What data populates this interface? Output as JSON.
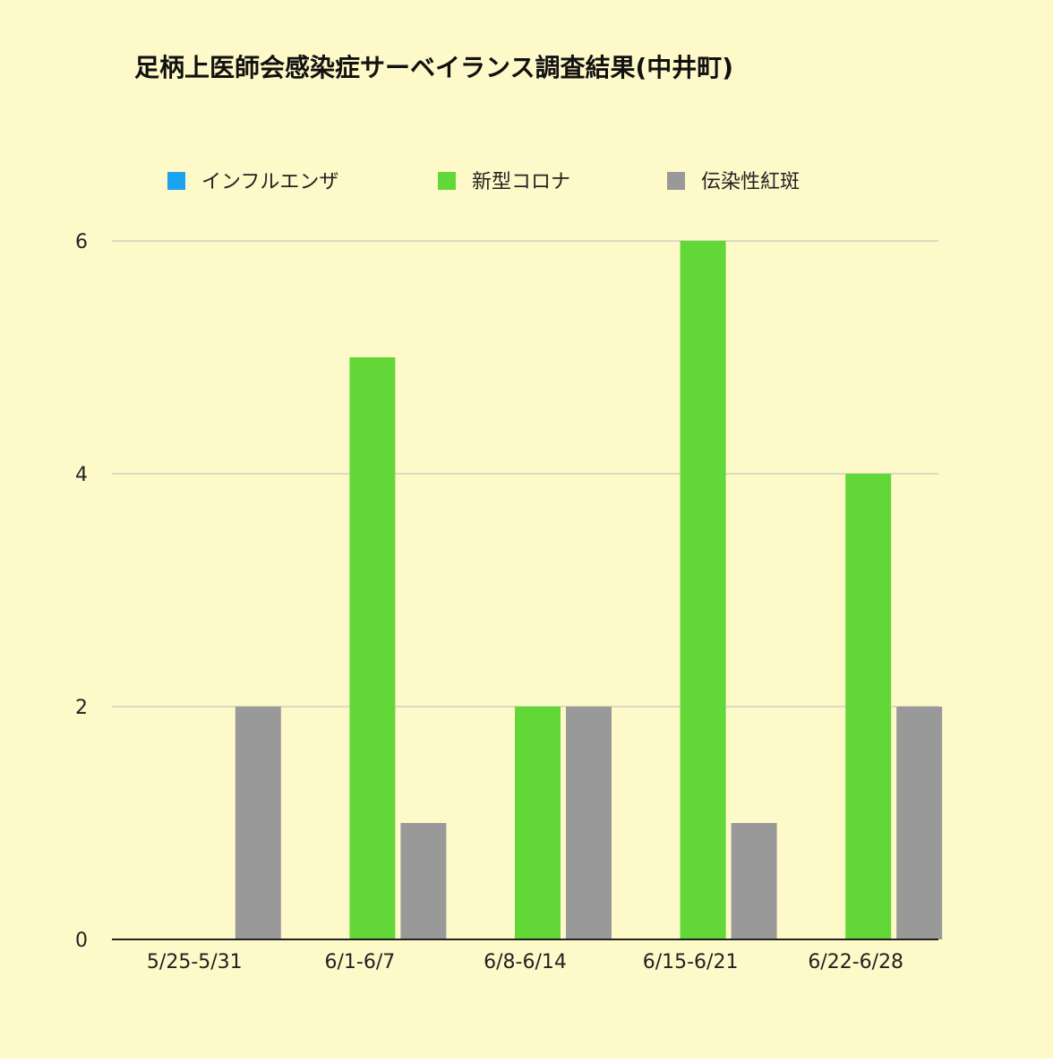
{
  "chart_data": {
    "type": "bar",
    "title": "足柄上医師会感染症サーベイランス調査結果(中井町)",
    "xlabel": "",
    "ylabel": "",
    "categories": [
      "5/25-5/31",
      "6/1-6/7",
      "6/8-6/14",
      "6/15-6/21",
      "6/22-6/28"
    ],
    "series": [
      {
        "name": "インフルエンザ",
        "color": "#1aa3f0",
        "values": [
          0,
          0,
          0,
          0,
          0
        ]
      },
      {
        "name": "新型コロナ",
        "color": "#62d838",
        "values": [
          0,
          5,
          2,
          6,
          4
        ]
      },
      {
        "name": "伝染性紅斑",
        "color": "#999999",
        "values": [
          2,
          1,
          2,
          1,
          2
        ]
      }
    ],
    "ylim": [
      0,
      6
    ],
    "yticks": [
      0,
      2,
      4,
      6
    ],
    "grid": true,
    "legend_position": "top",
    "background_color": "#fef9c8",
    "gridline_color": "#bbbbbb",
    "axis_color": "#222222"
  }
}
